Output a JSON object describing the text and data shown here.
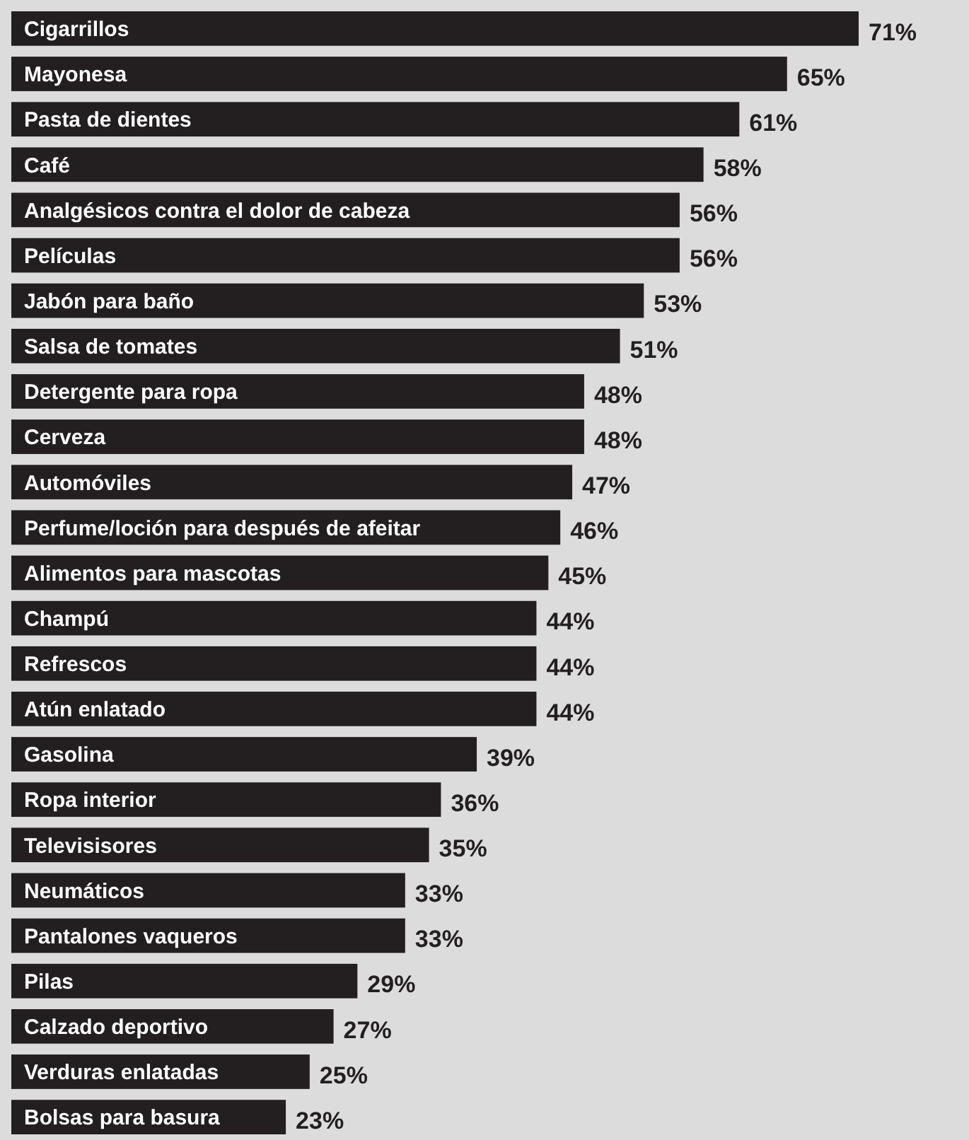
{
  "chart_data": {
    "type": "bar",
    "orientation": "horizontal",
    "data_labels": true,
    "categories": [
      "Cigarrillos",
      "Mayonesa",
      "Pasta de dientes",
      "Café",
      "Analgésicos contra el dolor de cabeza",
      "Películas",
      "Jabón para baño",
      "Salsa de tomates",
      "Detergente para ropa",
      "Cerveza",
      "Automóviles",
      "Perfume/loción para después de afeitar",
      "Alimentos para mascotas",
      "Champú",
      "Refrescos",
      "Atún enlatado",
      "Gasolina",
      "Ropa interior",
      "Televisisores",
      "Neumáticos",
      "Pantalones vaqueros",
      "Pilas",
      "Calzado deportivo",
      "Verduras enlatadas",
      "Bolsas para basura"
    ],
    "values": [
      71,
      65,
      61,
      58,
      56,
      56,
      53,
      51,
      48,
      48,
      47,
      46,
      45,
      44,
      44,
      44,
      39,
      36,
      35,
      33,
      33,
      29,
      27,
      25,
      23
    ],
    "value_labels": [
      "71%",
      "65%",
      "61%",
      "58%",
      "56%",
      "56%",
      "53%",
      "51%",
      "48%",
      "48%",
      "47%",
      "46%",
      "45%",
      "44%",
      "44%",
      "44%",
      "39%",
      "36%",
      "35%",
      "33%",
      "33%",
      "29%",
      "27%",
      "25%",
      "23%"
    ],
    "color": "#231f20"
  }
}
